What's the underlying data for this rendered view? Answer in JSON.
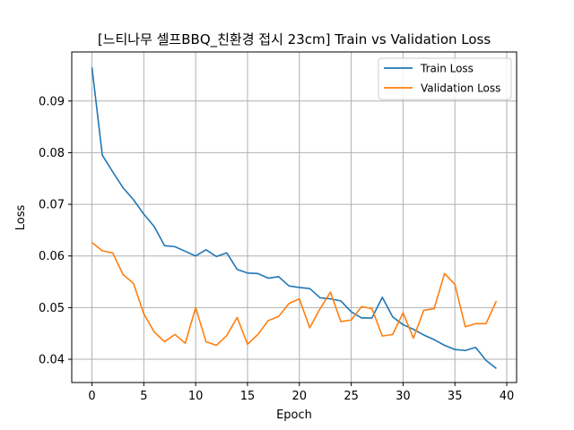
{
  "chart_data": {
    "type": "line",
    "title": "[느티나무 셀프BBQ_친환경 접시 23cm] Train vs Validation Loss",
    "xlabel": "Epoch",
    "ylabel": "Loss",
    "xlim": [
      -1.95,
      40.95
    ],
    "ylim": [
      0.0355,
      0.0995
    ],
    "xticks": [
      0,
      5,
      10,
      15,
      20,
      25,
      30,
      35,
      40
    ],
    "yticks": [
      0.04,
      0.05,
      0.06,
      0.07,
      0.08,
      0.09
    ],
    "ytick_labels": [
      "0.04",
      "0.05",
      "0.06",
      "0.07",
      "0.08",
      "0.09"
    ],
    "grid": true,
    "legend_position": "upper right",
    "x": [
      0,
      1,
      2,
      3,
      4,
      5,
      6,
      7,
      8,
      9,
      10,
      11,
      12,
      13,
      14,
      15,
      16,
      17,
      18,
      19,
      20,
      21,
      22,
      23,
      24,
      25,
      26,
      27,
      28,
      29,
      30,
      31,
      32,
      33,
      34,
      35,
      36,
      37,
      38,
      39
    ],
    "series": [
      {
        "name": "Train Loss",
        "color": "#1f77b4",
        "values": [
          0.0965,
          0.0795,
          0.0763,
          0.0732,
          0.0709,
          0.0681,
          0.0657,
          0.062,
          0.0618,
          0.0609,
          0.06,
          0.0612,
          0.0599,
          0.0606,
          0.0574,
          0.0567,
          0.0566,
          0.0557,
          0.056,
          0.0542,
          0.0539,
          0.0537,
          0.0519,
          0.0517,
          0.0513,
          0.0492,
          0.048,
          0.048,
          0.052,
          0.0482,
          0.0467,
          0.0458,
          0.0447,
          0.0438,
          0.0427,
          0.0419,
          0.0417,
          0.0423,
          0.0398,
          0.0382
        ]
      },
      {
        "name": "Validation Loss",
        "color": "#ff7f0e",
        "values": [
          0.0626,
          0.061,
          0.0606,
          0.0564,
          0.0547,
          0.0488,
          0.0453,
          0.0434,
          0.0448,
          0.0431,
          0.05,
          0.0434,
          0.0427,
          0.0446,
          0.0481,
          0.0429,
          0.0448,
          0.0475,
          0.0483,
          0.0508,
          0.0517,
          0.0461,
          0.0498,
          0.053,
          0.0473,
          0.0476,
          0.0502,
          0.0498,
          0.0445,
          0.0448,
          0.049,
          0.0441,
          0.0495,
          0.0498,
          0.0566,
          0.0545,
          0.0463,
          0.0469,
          0.0469,
          0.0513
        ]
      }
    ]
  }
}
